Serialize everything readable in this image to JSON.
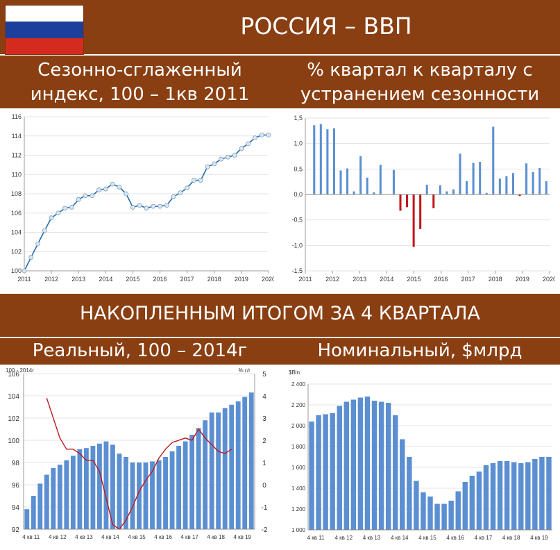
{
  "header": {
    "title": "РОССИЯ – ВВП",
    "flag_colors": [
      "#ffffff",
      "#1c3f9c",
      "#d52b1e"
    ]
  },
  "subtitles": {
    "top_left": [
      "Сезонно-сглаженный",
      "индекс, 100 – 1кв 2011"
    ],
    "top_right": [
      "% квартал к кварталу с",
      "устранением сезонности"
    ],
    "section": "НАКОПЛЕННЫМ ИТОГОМ ЗА 4 КВАРТАЛА",
    "bottom_left": "Реальный, 100 – 2014г",
    "bottom_right": "Номинальный, $млрд"
  },
  "colors": {
    "band": "#8a3f12",
    "bar": "#5b8fd1",
    "negative_bar": "#c0181b",
    "line": "#1f6bb0",
    "marker_fill": "#d9e6f2",
    "red_line": "#c0181b"
  },
  "chart_data": [
    {
      "id": "index",
      "type": "line",
      "x_ticks": [
        "2011",
        "2012",
        "2013",
        "2014",
        "2015",
        "2016",
        "2017",
        "2018",
        "2019",
        "2020"
      ],
      "y_ticks": [
        "100",
        "102",
        "104",
        "106",
        "108",
        "110",
        "112",
        "114",
        "116"
      ],
      "ylim": [
        100,
        116
      ],
      "x": [
        2011.0,
        2011.25,
        2011.5,
        2011.75,
        2012.0,
        2012.25,
        2012.5,
        2012.75,
        2013.0,
        2013.25,
        2013.5,
        2013.75,
        2014.0,
        2014.25,
        2014.5,
        2014.75,
        2015.0,
        2015.25,
        2015.5,
        2015.75,
        2016.0,
        2016.25,
        2016.5,
        2016.75,
        2017.0,
        2017.25,
        2017.5,
        2017.75,
        2018.0,
        2018.25,
        2018.5,
        2018.75,
        2019.0,
        2019.25,
        2019.5,
        2019.75,
        2020.0
      ],
      "values": [
        100.0,
        101.4,
        102.8,
        104.2,
        105.5,
        106.0,
        106.5,
        106.6,
        107.4,
        107.8,
        107.8,
        108.4,
        108.5,
        109.0,
        108.7,
        108.0,
        106.6,
        106.8,
        106.5,
        106.7,
        106.7,
        106.8,
        107.7,
        108.1,
        108.6,
        109.4,
        109.4,
        110.8,
        111.1,
        111.6,
        111.8,
        112.0,
        112.7,
        113.2,
        113.8,
        114.1,
        114.1
      ]
    },
    {
      "id": "qoq",
      "type": "bar",
      "x_ticks": [
        "2011",
        "2012",
        "2013",
        "2014",
        "2015",
        "2016",
        "2017",
        "2018",
        "2019",
        "2020"
      ],
      "y_ticks": [
        "1,5",
        "1,0",
        "0,5",
        "0,0",
        "-0,5",
        "-1,0",
        "-1,5"
      ],
      "y_tick_values": [
        1.5,
        1.0,
        0.5,
        0.0,
        -0.5,
        -1.0,
        -1.5
      ],
      "ylim": [
        -1.5,
        1.5
      ],
      "values": [
        1.36,
        1.38,
        1.28,
        1.3,
        0.47,
        0.51,
        0.06,
        0.75,
        0.33,
        0.04,
        0.58,
        0.0,
        0.48,
        -0.32,
        -0.25,
        -1.03,
        -0.68,
        0.19,
        -0.27,
        0.18,
        0.06,
        0.1,
        0.8,
        0.26,
        0.62,
        0.64,
        0.03,
        1.33,
        0.31,
        0.36,
        0.42,
        -0.03,
        0.61,
        0.44,
        0.52,
        0.26
      ]
    },
    {
      "id": "real",
      "type": "bar",
      "series": [
        {
          "type": "bar",
          "values": [
            93.8,
            95.0,
            96.1,
            96.9,
            97.5,
            97.8,
            98.2,
            98.6,
            99.2,
            99.3,
            99.5,
            99.7,
            99.9,
            99.6,
            98.8,
            98.5,
            98.0,
            98.0,
            98.0,
            98.1,
            98.2,
            98.5,
            99.0,
            99.5,
            99.9,
            100.5,
            101.1,
            101.8,
            102.5,
            102.5,
            102.9,
            103.2,
            103.5,
            103.9,
            104.3
          ]
        },
        {
          "type": "line",
          "axis": "right",
          "start_index": 3,
          "values": [
            3.9,
            3.0,
            2.1,
            1.6,
            1.6,
            1.4,
            1.1,
            1.1,
            0.6,
            -0.6,
            -1.8,
            -2.0,
            -1.6,
            -1.0,
            -0.3,
            0.2,
            0.6,
            1.2,
            1.6,
            1.9,
            2.0,
            2.1,
            2.0,
            2.5,
            2.1,
            1.8,
            1.5,
            1.4,
            1.6
          ]
        }
      ],
      "left_label": "100 - 2014г",
      "right_label": "%  г/г",
      "x_ticks": [
        "4 кв 11",
        "4 кв 12",
        "4 кв 13",
        "4 кв 14",
        "4 кв 15",
        "4 кв 16",
        "4 кв 17",
        "4 кв 18",
        "4 кв 19"
      ],
      "y_ticks": [
        "92",
        "94",
        "96",
        "98",
        "100",
        "102",
        "104",
        "106"
      ],
      "ylim": [
        92,
        106
      ],
      "y2_ticks": [
        "5",
        "4",
        "3",
        "2",
        "1",
        "0",
        "-1",
        "-2"
      ],
      "y2_tick_values": [
        5,
        4,
        3,
        2,
        1,
        0,
        -1,
        -2
      ],
      "y2lim": [
        -2,
        5
      ]
    },
    {
      "id": "nominal",
      "type": "bar",
      "ylabel": "$Bln",
      "x_ticks": [
        "4 кв 11",
        "4 кв 12",
        "4 кв 13",
        "4 кв 14",
        "4 кв 15",
        "4 кв 16",
        "4 кв 17",
        "4 кв 18",
        "4 кв 19"
      ],
      "y_ticks": [
        "2 400",
        "2 200",
        "2 000",
        "1 800",
        "1 600",
        "1 400",
        "1 200",
        "1 000"
      ],
      "y_tick_values": [
        2400,
        2200,
        2000,
        1800,
        1600,
        1400,
        1200,
        1000
      ],
      "ylim": [
        1000,
        2400
      ],
      "values": [
        2040,
        2100,
        2110,
        2120,
        2190,
        2230,
        2250,
        2270,
        2280,
        2240,
        2230,
        2220,
        2100,
        1870,
        1700,
        1470,
        1360,
        1320,
        1250,
        1250,
        1280,
        1370,
        1460,
        1520,
        1560,
        1620,
        1640,
        1660,
        1660,
        1650,
        1640,
        1650,
        1680,
        1700,
        1700
      ]
    }
  ]
}
